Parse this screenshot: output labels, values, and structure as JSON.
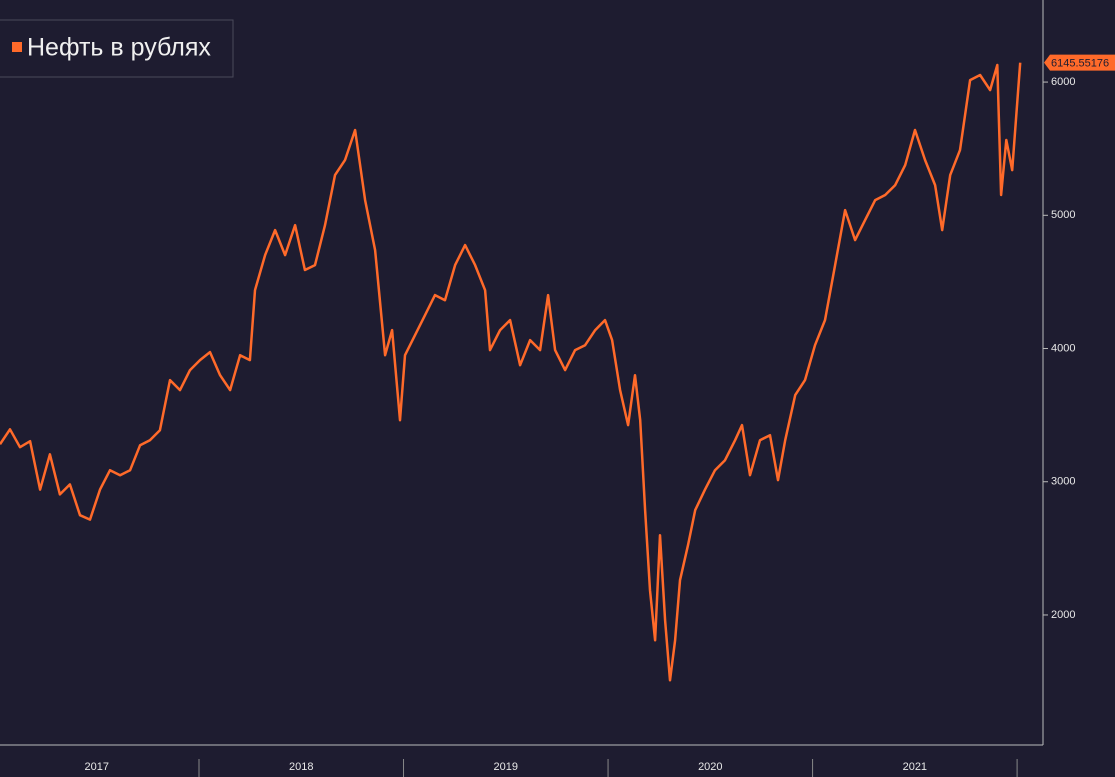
{
  "chart_data": {
    "type": "line",
    "x": [
      2017.027,
      2017.076,
      2017.125,
      2017.174,
      2017.223,
      2017.271,
      2017.32,
      2017.369,
      2017.418,
      2017.467,
      2017.516,
      2017.565,
      2017.614,
      2017.663,
      2017.712,
      2017.76,
      2017.809,
      2017.858,
      2017.907,
      2017.956,
      2018.005,
      2018.054,
      2018.103,
      2018.152,
      2018.201,
      2018.249,
      2018.274,
      2018.323,
      2018.372,
      2018.421,
      2018.47,
      2018.518,
      2018.567,
      2018.616,
      2018.665,
      2018.714,
      2018.763,
      2018.812,
      2018.861,
      2018.91,
      2018.944,
      2018.983,
      2019.007,
      2019.056,
      2019.105,
      2019.154,
      2019.203,
      2019.252,
      2019.301,
      2019.35,
      2019.399,
      2019.423,
      2019.472,
      2019.521,
      2019.57,
      2019.619,
      2019.668,
      2019.707,
      2019.741,
      2019.79,
      2019.839,
      2019.888,
      2019.937,
      2019.985,
      2020.02,
      2020.059,
      2020.098,
      2020.132,
      2020.157,
      2020.181,
      2020.205,
      2020.23,
      2020.254,
      2020.279,
      2020.303,
      2020.328,
      2020.352,
      2020.391,
      2020.426,
      2020.474,
      2020.523,
      2020.572,
      2020.621,
      2020.655,
      2020.694,
      2020.743,
      2020.792,
      2020.831,
      2020.866,
      2020.915,
      2020.963,
      2021.012,
      2021.061,
      2021.11,
      2021.159,
      2021.208,
      2021.257,
      2021.306,
      2021.355,
      2021.404,
      2021.453,
      2021.501,
      2021.55,
      2021.599,
      2021.634,
      2021.673,
      2021.721,
      2021.77,
      2021.819,
      2021.868,
      2021.903,
      2021.922,
      2021.947,
      2021.976,
      2022.015
    ],
    "series": [
      {
        "name": "Нефть в рублях",
        "color": "#ff6a2a",
        "values": [
          3281,
          3394,
          3259,
          3304,
          2941,
          3206,
          2905,
          2980,
          2749,
          2716,
          2941,
          3087,
          3049,
          3087,
          3274,
          3312,
          3387,
          3763,
          3688,
          3838,
          3913,
          3973,
          3800,
          3688,
          3950,
          3913,
          4438,
          4701,
          4889,
          4701,
          4926,
          4589,
          4626,
          4926,
          5302,
          5414,
          5640,
          5114,
          4739,
          3950,
          4138,
          3462,
          3950,
          4100,
          4250,
          4401,
          4363,
          4626,
          4776,
          4626,
          4438,
          3988,
          4138,
          4213,
          3875,
          4063,
          3988,
          4401,
          3988,
          3838,
          3988,
          4025,
          4138,
          4213,
          4063,
          3688,
          3425,
          3800,
          3462,
          2787,
          2186,
          1810,
          2599,
          1960,
          1510,
          1810,
          2261,
          2524,
          2787,
          2941,
          3087,
          3162,
          3312,
          3425,
          3049,
          3312,
          3349,
          3012,
          3312,
          3650,
          3763,
          4025,
          4213,
          4626,
          5039,
          4814,
          4964,
          5114,
          5152,
          5227,
          5377,
          5640,
          5414,
          5227,
          4889,
          5302,
          5489,
          6015,
          6053,
          5940,
          6128,
          5152,
          5565,
          5339,
          6145.55176
        ]
      }
    ],
    "xlim": [
      2017.027,
      2022.112
    ],
    "xticks": [
      {
        "value": 2017.5,
        "label": "2017"
      },
      {
        "value": 2018.5,
        "label": "2018"
      },
      {
        "value": 2019.5,
        "label": "2019"
      },
      {
        "value": 2020.5,
        "label": "2020"
      },
      {
        "value": 2021.5,
        "label": "2021"
      }
    ],
    "ylim": [
      1024,
      6616
    ],
    "yticks": [
      2000,
      3000,
      4000,
      5000,
      6000
    ],
    "legend": "upper left"
  }
}
